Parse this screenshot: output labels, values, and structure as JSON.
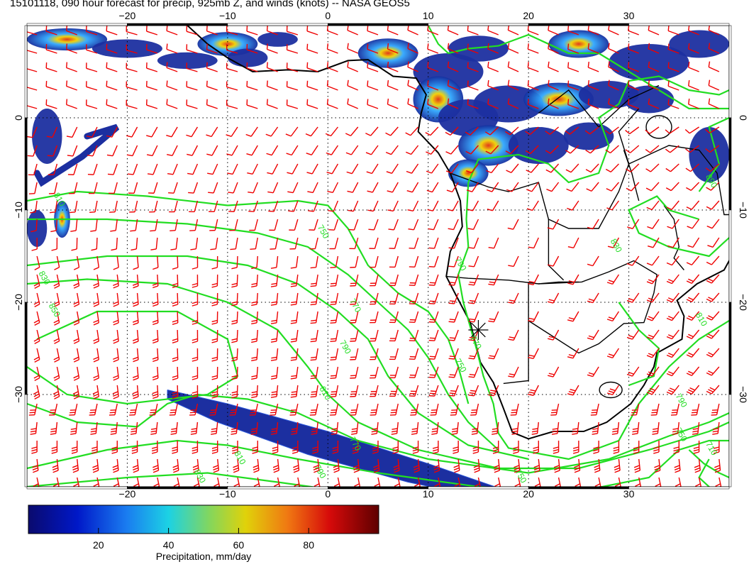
{
  "title": "15101118, 090 hour forecast for precip, 925mb Z, and winds (knots) -- NASA GEOS5",
  "map": {
    "lon_range": [
      -30,
      40
    ],
    "lat_range": [
      -40,
      10
    ],
    "lon_ticks": [
      {
        "value": -20,
        "label": "−20"
      },
      {
        "value": -10,
        "label": "−10"
      },
      {
        "value": 0,
        "label": "0"
      },
      {
        "value": 10,
        "label": "10"
      },
      {
        "value": 20,
        "label": "20"
      },
      {
        "value": 30,
        "label": "30"
      }
    ],
    "lat_ticks": [
      {
        "value": 0,
        "label": "0"
      },
      {
        "value": -10,
        "label": "−10"
      },
      {
        "value": -20,
        "label": "−20"
      },
      {
        "value": -30,
        "label": "−30"
      }
    ],
    "grid": true,
    "colors": {
      "contour": "#22dd22",
      "barbs": "#ee0000",
      "coast": "#000000",
      "precip_low": "#1a2a9a",
      "precip_mid": "#22a0ff",
      "precip_high": "#e02000"
    }
  },
  "contours": {
    "variable": "925mb Z",
    "labels": [
      {
        "text": "750",
        "lon": -0.7,
        "lat": -12.5
      },
      {
        "text": "770",
        "lon": 2.5,
        "lat": -20.5
      },
      {
        "text": "790",
        "lon": 1.5,
        "lat": -25
      },
      {
        "text": "810",
        "lon": -0.5,
        "lat": -30
      },
      {
        "text": "830",
        "lon": -28.5,
        "lat": -17.5
      },
      {
        "text": "850",
        "lon": -27.5,
        "lat": -21
      },
      {
        "text": "790",
        "lon": 13,
        "lat": -16
      },
      {
        "text": "770",
        "lon": 14.5,
        "lat": -24.5
      },
      {
        "text": "750",
        "lon": 13,
        "lat": -27
      },
      {
        "text": "790",
        "lon": 35,
        "lat": -30.8
      },
      {
        "text": "750",
        "lon": 35,
        "lat": -34.5
      },
      {
        "text": "710",
        "lon": 38,
        "lat": -36
      },
      {
        "text": "810",
        "lon": 37,
        "lat": -22
      },
      {
        "text": "770",
        "lon": 2.5,
        "lat": -35.5
      },
      {
        "text": "790",
        "lon": -1,
        "lat": -38.5
      },
      {
        "text": "810",
        "lon": -9,
        "lat": -37
      },
      {
        "text": "830",
        "lon": -13,
        "lat": -39
      },
      {
        "text": "750",
        "lon": 19,
        "lat": -39
      },
      {
        "text": "830",
        "lon": 28.5,
        "lat": -14
      },
      {
        "text": "890",
        "lon": 38,
        "lat": -7
      },
      {
        "text": "810",
        "lon": -27,
        "lat": -9
      }
    ]
  },
  "marker": {
    "lon": 15,
    "lat": -23
  },
  "colorbar": {
    "min": 0,
    "max": 100,
    "tick_labels": [
      "20",
      "40",
      "60",
      "80"
    ],
    "label": "Precipitation, mm/day"
  }
}
